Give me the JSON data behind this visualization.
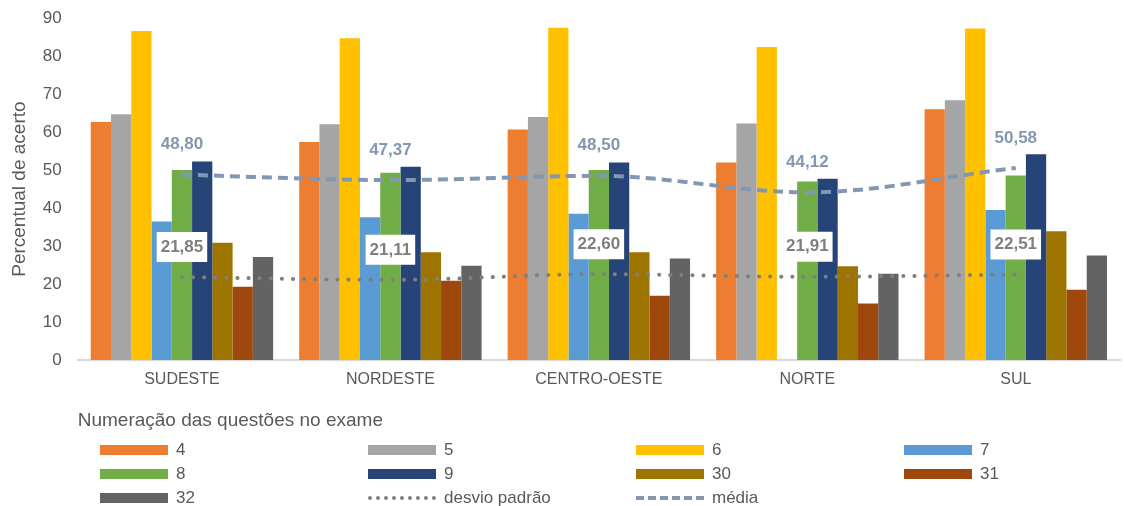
{
  "chart_data": {
    "type": "bar",
    "categories": [
      "SUDESTE",
      "NORDESTE",
      "CENTRO-OESTE",
      "NORTE",
      "SUL"
    ],
    "ylabel": "Percentual de acerto",
    "xlabel": "Numeração das questões no exame",
    "ylim": [
      0,
      90
    ],
    "yticks": [
      0,
      10,
      20,
      30,
      40,
      50,
      60,
      70,
      80,
      90
    ],
    "grid": false,
    "legend": "bottom",
    "marker": "none",
    "series": [
      {
        "name": "4",
        "color": "#ed7d31",
        "values": [
          62.7,
          57.4,
          60.7,
          52.0,
          66.0
        ]
      },
      {
        "name": "5",
        "color": "#a5a5a5",
        "values": [
          64.7,
          62.1,
          64.0,
          62.3,
          68.4
        ]
      },
      {
        "name": "6",
        "color": "#ffc000",
        "values": [
          86.6,
          84.7,
          87.5,
          82.4,
          87.3
        ]
      },
      {
        "name": "7",
        "color": "#5b9bd5",
        "values": [
          36.5,
          37.6,
          38.5,
          null,
          39.5
        ]
      },
      {
        "name": "8",
        "color": "#70ad47",
        "values": [
          50.0,
          49.3,
          50.0,
          47.0,
          48.6
        ]
      },
      {
        "name": "9",
        "color": "#264478",
        "values": [
          52.3,
          50.9,
          52.0,
          47.7,
          54.2
        ]
      },
      {
        "name": "30",
        "color": "#9e7400",
        "values": [
          30.9,
          28.4,
          28.4,
          24.7,
          33.9
        ]
      },
      {
        "name": "31",
        "color": "#9e480e",
        "values": [
          19.3,
          20.9,
          16.9,
          14.9,
          18.5
        ]
      },
      {
        "name": "32",
        "color": "#636363",
        "values": [
          27.1,
          24.8,
          26.7,
          22.7,
          27.5
        ]
      },
      {
        "name": "desvio padrão",
        "type": "line",
        "line_style": "dotted",
        "color": "#7f7f7f",
        "values": [
          21.85,
          21.11,
          22.6,
          21.91,
          22.51
        ],
        "value_labels": [
          "21,85",
          "21,11",
          "22,60",
          "21,91",
          "22,51"
        ]
      },
      {
        "name": "média",
        "type": "line",
        "line_style": "dashed",
        "color": "#8497b0",
        "values": [
          48.8,
          47.37,
          48.5,
          44.12,
          50.58
        ],
        "value_labels": [
          "48,80",
          "47,37",
          "48,50",
          "44,12",
          "50,58"
        ]
      }
    ]
  }
}
